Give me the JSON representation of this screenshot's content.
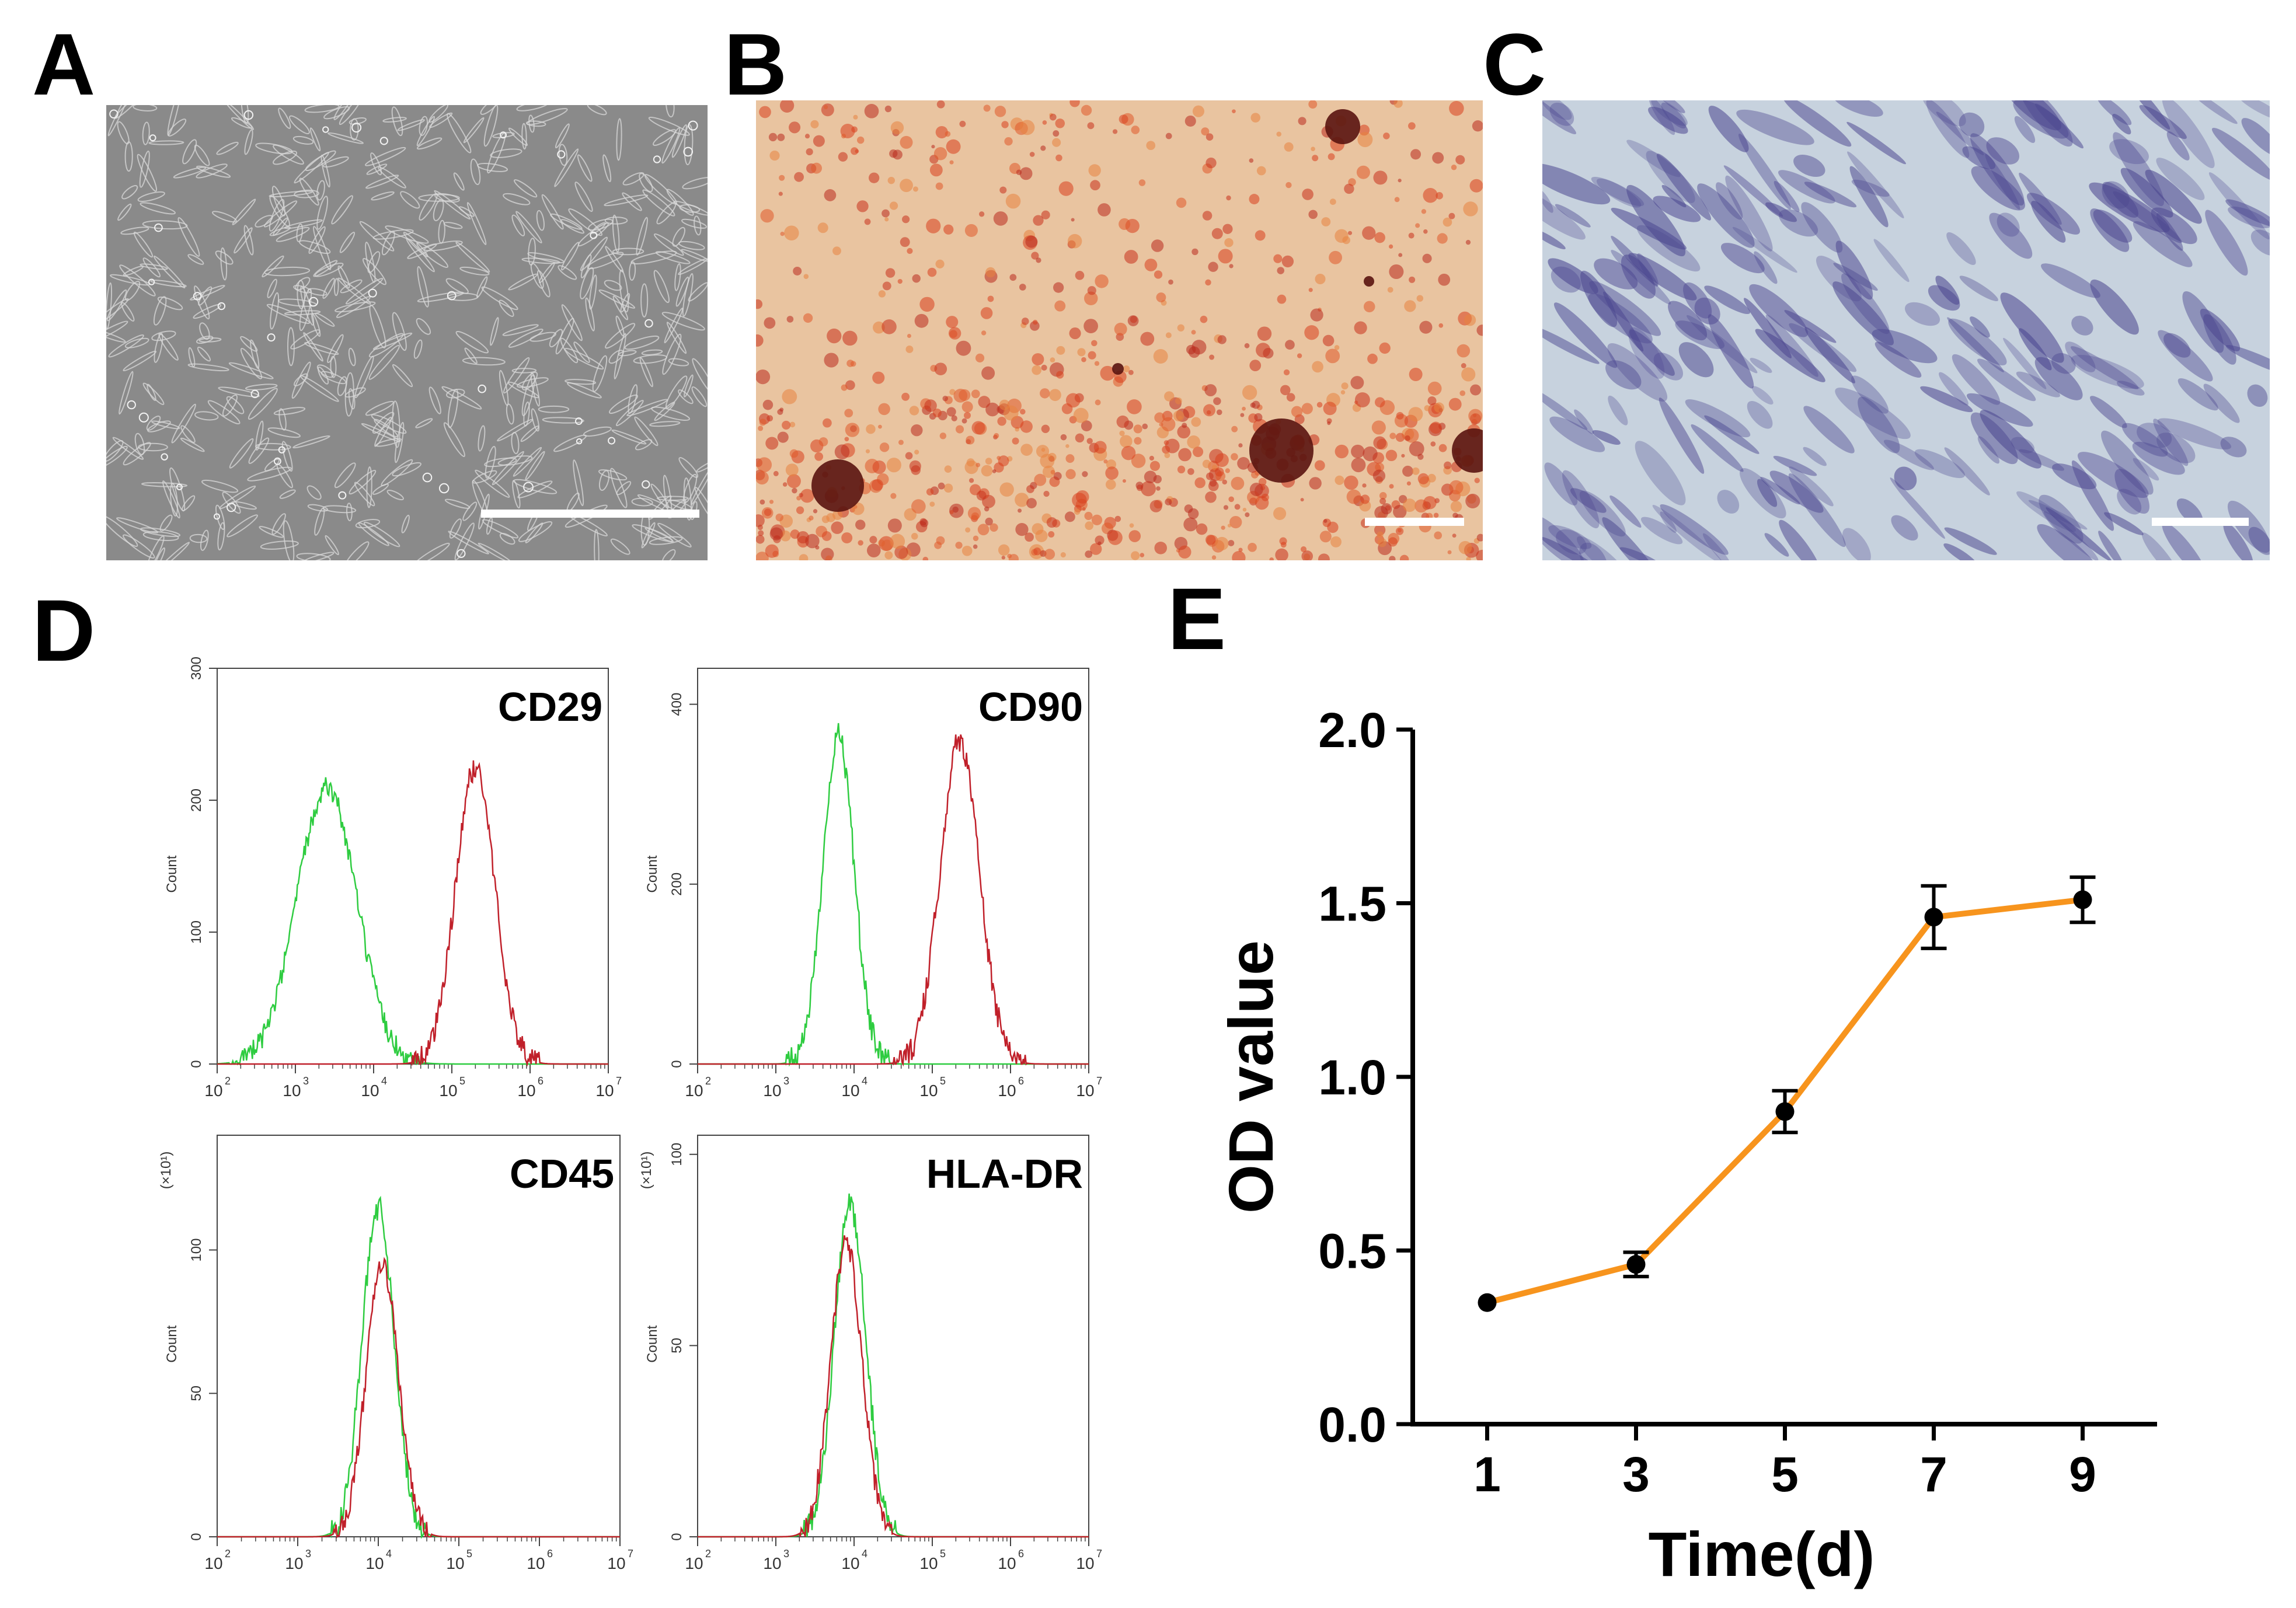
{
  "panels": {
    "A": {
      "letter": "A",
      "stain": "phase-contrast",
      "colors": {
        "bg": "#8a8a8a",
        "cell": "#d8d8d8"
      }
    },
    "B": {
      "letter": "B",
      "stain": "alizarin-red",
      "colors": {
        "bg": "#e9c4a0",
        "spot": "#d8401e"
      }
    },
    "C": {
      "letter": "C",
      "stain": "alcian-blue",
      "colors": {
        "bg": "#c7d2de",
        "spot": "#4c4790"
      }
    },
    "D": {
      "letter": "D"
    },
    "E": {
      "letter": "E"
    }
  },
  "flow": {
    "x_ticks": [
      "10",
      "10",
      "10",
      "10",
      "10",
      "10"
    ],
    "x_exps": [
      "2",
      "3",
      "4",
      "5",
      "6",
      "7"
    ],
    "ylabel": "Count",
    "negative_color": "#2ecc40",
    "positive_color": "#c0202a",
    "histograms": [
      {
        "marker": "CD29",
        "y_ticks": [
          "0",
          "100",
          "200",
          "300"
        ],
        "y_mult": "",
        "neg_peak_log": 3.4,
        "neg_peak_count": 210,
        "pos_peak_log": 5.3,
        "pos_peak_count": 225,
        "ymax": 300
      },
      {
        "marker": "CD90",
        "y_ticks": [
          "0",
          "200",
          "400"
        ],
        "y_mult": "",
        "neg_peak_log": 3.8,
        "neg_peak_count": 365,
        "pos_peak_log": 5.35,
        "pos_peak_count": 360,
        "ymax": 440
      },
      {
        "marker": "CD45",
        "y_ticks": [
          "0",
          "50",
          "100"
        ],
        "y_mult": "(×10¹)",
        "neg_peak_log": 4.0,
        "neg_peak_count": 115,
        "pos_peak_log": 4.05,
        "pos_peak_count": 95,
        "ymax": 140
      },
      {
        "marker": "HLA-DR",
        "y_ticks": [
          "0",
          "50",
          "100"
        ],
        "y_mult": "(×10¹)",
        "neg_peak_log": 3.95,
        "neg_peak_count": 87,
        "pos_peak_log": 3.9,
        "pos_peak_count": 77,
        "ymax": 105
      }
    ]
  },
  "chart_data": {
    "type": "line",
    "title": "",
    "xlabel": "Time(d)",
    "ylabel": "OD value",
    "x": [
      1,
      3,
      5,
      7,
      9
    ],
    "y": [
      0.35,
      0.46,
      0.9,
      1.46,
      1.51
    ],
    "error": [
      0.01,
      0.035,
      0.06,
      0.09,
      0.065
    ],
    "xticks": [
      "1",
      "3",
      "5",
      "7",
      "9"
    ],
    "yticks": [
      "0.0",
      "0.5",
      "1.0",
      "1.5",
      "2.0"
    ],
    "ylim": [
      0,
      2.0
    ],
    "xlim": [
      0,
      10
    ],
    "line_color": "#f7941d",
    "marker_color": "#000000"
  }
}
